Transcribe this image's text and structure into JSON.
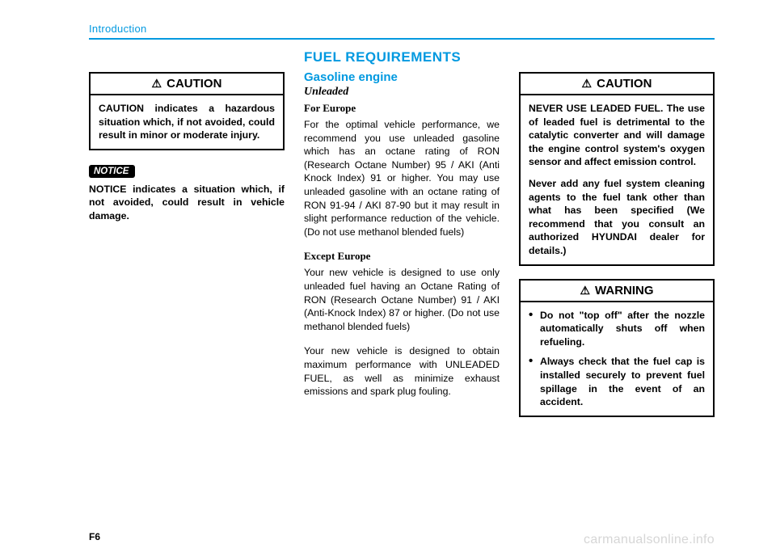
{
  "header": {
    "title": "Introduction"
  },
  "col1": {
    "caution": {
      "label": "CAUTION",
      "body": "CAUTION indicates a hazardous situation which, if not avoided, could result in minor or moderate injury."
    },
    "notice": {
      "tag": "NOTICE",
      "body": "NOTICE indicates a situation which, if not avoided, could result in vehicle damage."
    }
  },
  "col2": {
    "section": "FUEL REQUIREMENTS",
    "sub1": "Gasoline engine",
    "sub2": "Unleaded",
    "h1": "For Europe",
    "p1": "For the optimal vehicle performance, we recommend you use unleaded gasoline which has an octane rating of RON (Research Octane Number) 95 / AKI (Anti Knock Index) 91 or higher. You may use unleaded gasoline with an octane rating of RON 91-94 / AKI 87-90 but it may result in slight performance reduction of the vehicle. (Do not use methanol blended fuels)",
    "h2": "Except Europe",
    "p2": "Your new vehicle is designed to use only unleaded fuel having an Octane Rating of RON (Research Octane Number) 91 / AKI (Anti-Knock Index) 87 or higher. (Do not use methanol blended fuels)",
    "p3": "Your new vehicle is designed to obtain maximum performance with UNLEADED FUEL, as well as minimize exhaust emissions and spark plug fouling."
  },
  "col3": {
    "caution": {
      "label": "CAUTION",
      "p1": "NEVER USE LEADED FUEL. The use of leaded fuel is detrimental to the catalytic converter and will damage the engine control system's oxygen sensor and affect emission control.",
      "p2": "Never add any fuel system cleaning agents to the fuel tank other than what has been specified (We recommend that you consult an authorized HYUNDAI dealer for details.)"
    },
    "warning": {
      "label": "WARNING",
      "li1": "Do not \"top off\" after the nozzle automatically shuts off when refueling.",
      "li2": "Always check that the fuel cap is installed securely to prevent fuel spillage in the event of an accident."
    }
  },
  "footer": {
    "pagenum": "F6",
    "watermark": "carmanualsonline.info"
  },
  "triangle_glyph": "⚠"
}
